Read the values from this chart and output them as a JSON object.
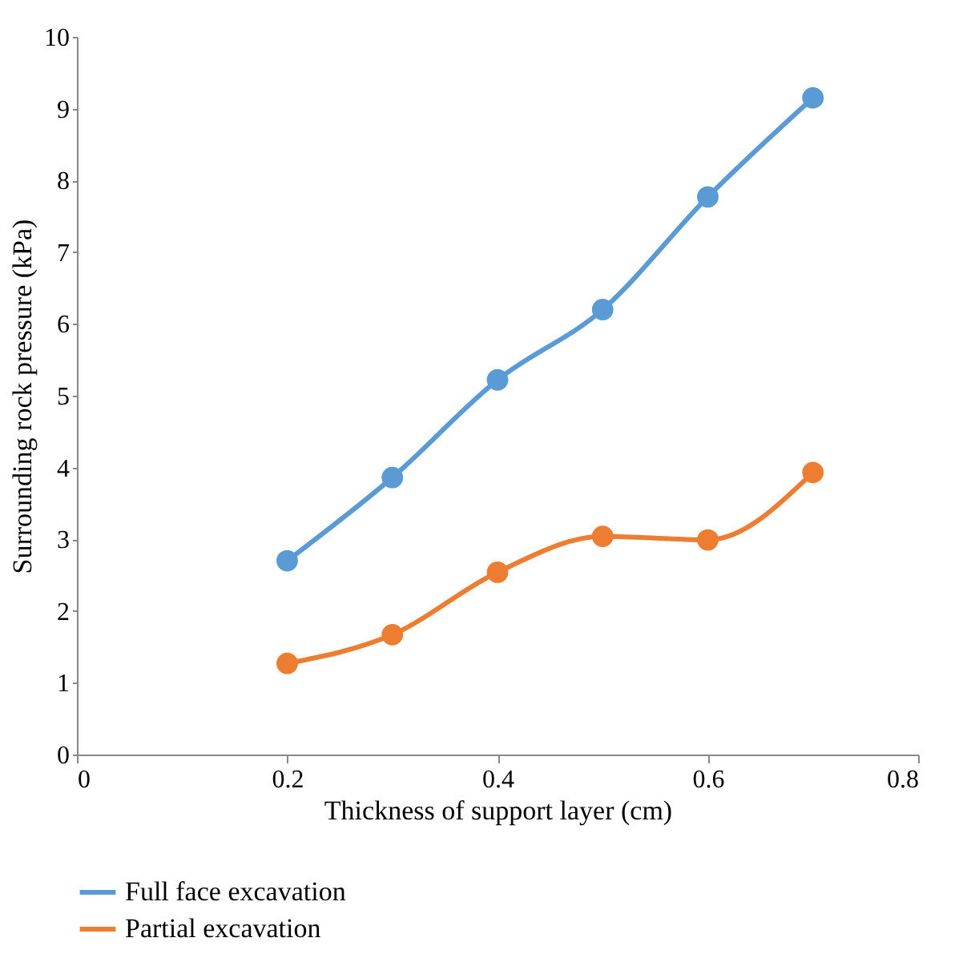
{
  "chart_data": {
    "type": "line",
    "xlabel": "Thickness of support layer (cm)",
    "ylabel": "Surrounding rock pressure (kPa)",
    "x": [
      0.2,
      0.3,
      0.4,
      0.5,
      0.6,
      0.7
    ],
    "series": [
      {
        "name": "Full face excavation",
        "color": "#5b9bd5",
        "values": [
          2.7,
          3.86,
          5.22,
          6.2,
          7.77,
          9.15
        ]
      },
      {
        "name": "Partial excavation",
        "color": "#ed7d31",
        "values": [
          1.27,
          1.67,
          2.54,
          3.04,
          2.99,
          3.93
        ]
      }
    ],
    "xlim": [
      0,
      0.8
    ],
    "xticks": [
      0,
      0.2,
      0.4,
      0.6,
      0.8
    ],
    "ylim": [
      0,
      10
    ],
    "yticks": [
      0,
      1,
      2,
      3,
      4,
      5,
      6,
      7,
      8,
      9,
      10
    ],
    "grid": false,
    "legend": "bottom",
    "marker": "circle",
    "line_style": "solid"
  }
}
